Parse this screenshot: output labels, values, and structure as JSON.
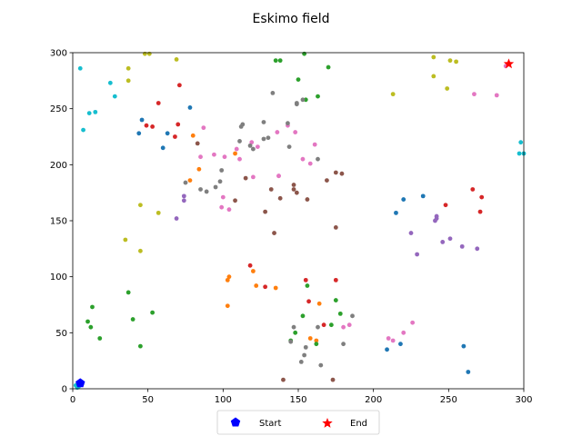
{
  "chart_data": {
    "type": "scatter",
    "title": "Eskimo field",
    "xlabel": "",
    "ylabel": "",
    "xlim": [
      0,
      300
    ],
    "ylim": [
      0,
      300
    ],
    "xticks": [
      0,
      50,
      100,
      150,
      200,
      250,
      300
    ],
    "yticks": [
      0,
      50,
      100,
      150,
      200,
      250,
      300
    ],
    "grid": false,
    "legend_position": "bottom-center",
    "legend": [
      {
        "label": "Start",
        "marker": "pentagon",
        "color": "#0000ff"
      },
      {
        "label": "End",
        "marker": "star",
        "color": "#ff0000"
      }
    ],
    "start": {
      "x": 5,
      "y": 5
    },
    "end": {
      "x": 290,
      "y": 290
    },
    "series": [
      {
        "color": "#1f77b4",
        "points": [
          [
            78,
            251
          ],
          [
            44,
            228
          ],
          [
            46,
            240
          ],
          [
            60,
            215
          ],
          [
            63,
            228
          ],
          [
            215,
            157
          ],
          [
            220,
            169
          ],
          [
            233,
            172
          ],
          [
            218,
            40
          ],
          [
            209,
            35
          ],
          [
            260,
            38
          ],
          [
            263,
            15
          ]
        ]
      },
      {
        "color": "#ff7f0e",
        "points": [
          [
            80,
            226
          ],
          [
            84,
            196
          ],
          [
            78,
            186
          ],
          [
            108,
            210
          ],
          [
            103,
            97
          ],
          [
            104,
            100
          ],
          [
            120,
            105
          ],
          [
            122,
            92
          ],
          [
            135,
            90
          ],
          [
            103,
            74
          ],
          [
            164,
            76
          ],
          [
            158,
            45
          ],
          [
            162,
            43
          ]
        ]
      },
      {
        "color": "#2ca02c",
        "points": [
          [
            135,
            293
          ],
          [
            138,
            293
          ],
          [
            154,
            299
          ],
          [
            170,
            287
          ],
          [
            150,
            276
          ],
          [
            155,
            258
          ],
          [
            163,
            261
          ],
          [
            37,
            86
          ],
          [
            40,
            62
          ],
          [
            45,
            38
          ],
          [
            53,
            68
          ],
          [
            10,
            60
          ],
          [
            12,
            55
          ],
          [
            13,
            73
          ],
          [
            18,
            45
          ],
          [
            156,
            92
          ],
          [
            153,
            65
          ],
          [
            148,
            50
          ],
          [
            145,
            43
          ],
          [
            175,
            79
          ],
          [
            178,
            67
          ],
          [
            172,
            57
          ],
          [
            162,
            40
          ]
        ]
      },
      {
        "color": "#d62728",
        "points": [
          [
            57,
            255
          ],
          [
            71,
            271
          ],
          [
            70,
            236
          ],
          [
            68,
            225
          ],
          [
            49,
            235
          ],
          [
            53,
            234
          ],
          [
            118,
            110
          ],
          [
            128,
            91
          ],
          [
            155,
            97
          ],
          [
            157,
            78
          ],
          [
            175,
            97
          ],
          [
            167,
            57
          ],
          [
            248,
            164
          ],
          [
            266,
            178
          ],
          [
            272,
            171
          ],
          [
            271,
            158
          ]
        ]
      },
      {
        "color": "#9467bd",
        "points": [
          [
            69,
            152
          ],
          [
            74,
            168
          ],
          [
            74,
            172
          ],
          [
            242,
            152
          ],
          [
            242,
            154
          ],
          [
            241,
            150
          ],
          [
            246,
            131
          ],
          [
            251,
            134
          ],
          [
            229,
            120
          ],
          [
            225,
            139
          ],
          [
            259,
            127
          ],
          [
            269,
            125
          ]
        ]
      },
      {
        "color": "#8c564b",
        "points": [
          [
            83,
            219
          ],
          [
            108,
            168
          ],
          [
            115,
            188
          ],
          [
            128,
            158
          ],
          [
            132,
            178
          ],
          [
            134,
            139
          ],
          [
            138,
            170
          ],
          [
            147,
            178
          ],
          [
            147,
            182
          ],
          [
            149,
            175
          ],
          [
            156,
            169
          ],
          [
            175,
            193
          ],
          [
            179,
            192
          ],
          [
            175,
            144
          ],
          [
            169,
            186
          ],
          [
            140,
            8
          ],
          [
            173,
            8
          ]
        ]
      },
      {
        "color": "#e377c2",
        "points": [
          [
            85,
            207
          ],
          [
            87,
            233
          ],
          [
            94,
            209
          ],
          [
            99,
            162
          ],
          [
            100,
            171
          ],
          [
            101,
            207
          ],
          [
            104,
            160
          ],
          [
            109,
            214
          ],
          [
            111,
            205
          ],
          [
            119,
            220
          ],
          [
            123,
            216
          ],
          [
            136,
            229
          ],
          [
            143,
            235
          ],
          [
            148,
            229
          ],
          [
            153,
            205
          ],
          [
            158,
            201
          ],
          [
            161,
            218
          ],
          [
            120,
            189
          ],
          [
            137,
            190
          ],
          [
            137,
            190
          ],
          [
            226,
            59
          ],
          [
            220,
            50
          ],
          [
            210,
            45
          ],
          [
            213,
            43
          ],
          [
            180,
            55
          ],
          [
            184,
            57
          ],
          [
            288,
            288
          ],
          [
            267,
            263
          ],
          [
            282,
            262
          ]
        ]
      },
      {
        "color": "#7f7f7f",
        "points": [
          [
            75,
            184
          ],
          [
            85,
            178
          ],
          [
            89,
            176
          ],
          [
            95,
            180
          ],
          [
            98,
            185
          ],
          [
            99,
            195
          ],
          [
            111,
            221
          ],
          [
            112,
            234
          ],
          [
            113,
            236
          ],
          [
            118,
            217
          ],
          [
            120,
            214
          ],
          [
            127,
            238
          ],
          [
            127,
            223
          ],
          [
            130,
            224
          ],
          [
            133,
            264
          ],
          [
            149,
            255
          ],
          [
            153,
            258
          ],
          [
            144,
            216
          ],
          [
            143,
            237
          ],
          [
            163,
            205
          ],
          [
            149,
            254
          ],
          [
            186,
            65
          ],
          [
            180,
            40
          ],
          [
            165,
            21
          ],
          [
            154,
            30
          ],
          [
            152,
            24
          ],
          [
            147,
            55
          ],
          [
            145,
            42
          ],
          [
            155,
            37
          ],
          [
            163,
            55
          ]
        ]
      },
      {
        "color": "#bcbd22",
        "points": [
          [
            48,
            299
          ],
          [
            51,
            299
          ],
          [
            69,
            294
          ],
          [
            37,
            286
          ],
          [
            37,
            275
          ],
          [
            35,
            133
          ],
          [
            45,
            164
          ],
          [
            45,
            123
          ],
          [
            57,
            157
          ],
          [
            213,
            263
          ],
          [
            240,
            296
          ],
          [
            240,
            279
          ],
          [
            249,
            268
          ],
          [
            251,
            293
          ],
          [
            255,
            292
          ]
        ]
      },
      {
        "color": "#17becf",
        "points": [
          [
            5,
            286
          ],
          [
            7,
            231
          ],
          [
            11,
            246
          ],
          [
            15,
            247
          ],
          [
            25,
            273
          ],
          [
            28,
            261
          ],
          [
            297,
            210
          ],
          [
            298,
            220
          ],
          [
            300,
            210
          ],
          [
            2,
            3
          ],
          [
            4,
            2
          ],
          [
            6,
            4
          ],
          [
            3,
            1
          ]
        ]
      }
    ]
  }
}
